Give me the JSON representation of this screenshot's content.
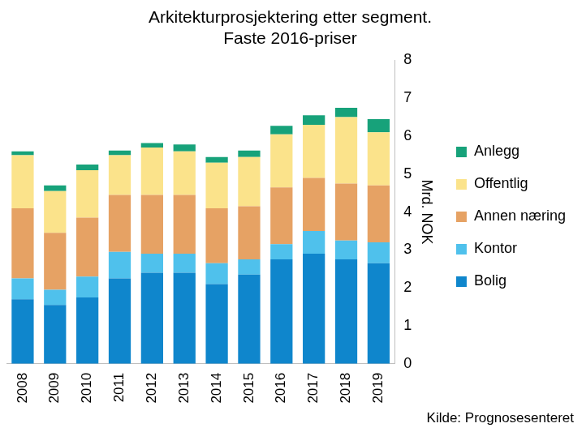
{
  "chart_data": {
    "type": "bar",
    "title": [
      "Arkitekturprosjektering etter segment.",
      "Faste 2016-priser"
    ],
    "y_label": "Mrd. NOK",
    "source": "Kilde: Prognosesenteret",
    "categories": [
      "2008",
      "2009",
      "2010",
      "2011",
      "2012",
      "2013",
      "2014",
      "2015",
      "2016",
      "2017",
      "2018",
      "2019"
    ],
    "series": [
      {
        "name": "Bolig",
        "color": "#0f86cc",
        "values": [
          1.7,
          1.55,
          1.75,
          2.25,
          2.4,
          2.4,
          2.1,
          2.35,
          2.75,
          2.9,
          2.75,
          2.65
        ]
      },
      {
        "name": "Kontor",
        "color": "#4fc1ec",
        "values": [
          0.55,
          0.4,
          0.55,
          0.7,
          0.5,
          0.5,
          0.55,
          0.4,
          0.4,
          0.6,
          0.5,
          0.55
        ]
      },
      {
        "name": "Annen næring",
        "color": "#e6a264",
        "values": [
          1.85,
          1.5,
          1.55,
          1.5,
          1.55,
          1.55,
          1.45,
          1.4,
          1.5,
          1.4,
          1.5,
          1.5
        ]
      },
      {
        "name": "Offentlig",
        "color": "#fbe38b",
        "values": [
          1.4,
          1.1,
          1.25,
          1.05,
          1.25,
          1.15,
          1.2,
          1.3,
          1.4,
          1.4,
          1.75,
          1.4
        ]
      },
      {
        "name": "Anlegg",
        "color": "#17a27a",
        "values": [
          0.1,
          0.15,
          0.15,
          0.12,
          0.12,
          0.18,
          0.15,
          0.17,
          0.22,
          0.25,
          0.25,
          0.35
        ]
      }
    ],
    "stacked": true,
    "ylim": [
      0,
      8
    ],
    "yticks": [
      0,
      1,
      2,
      3,
      4,
      5,
      6,
      7,
      8
    ],
    "grid": false,
    "legend": "right"
  }
}
